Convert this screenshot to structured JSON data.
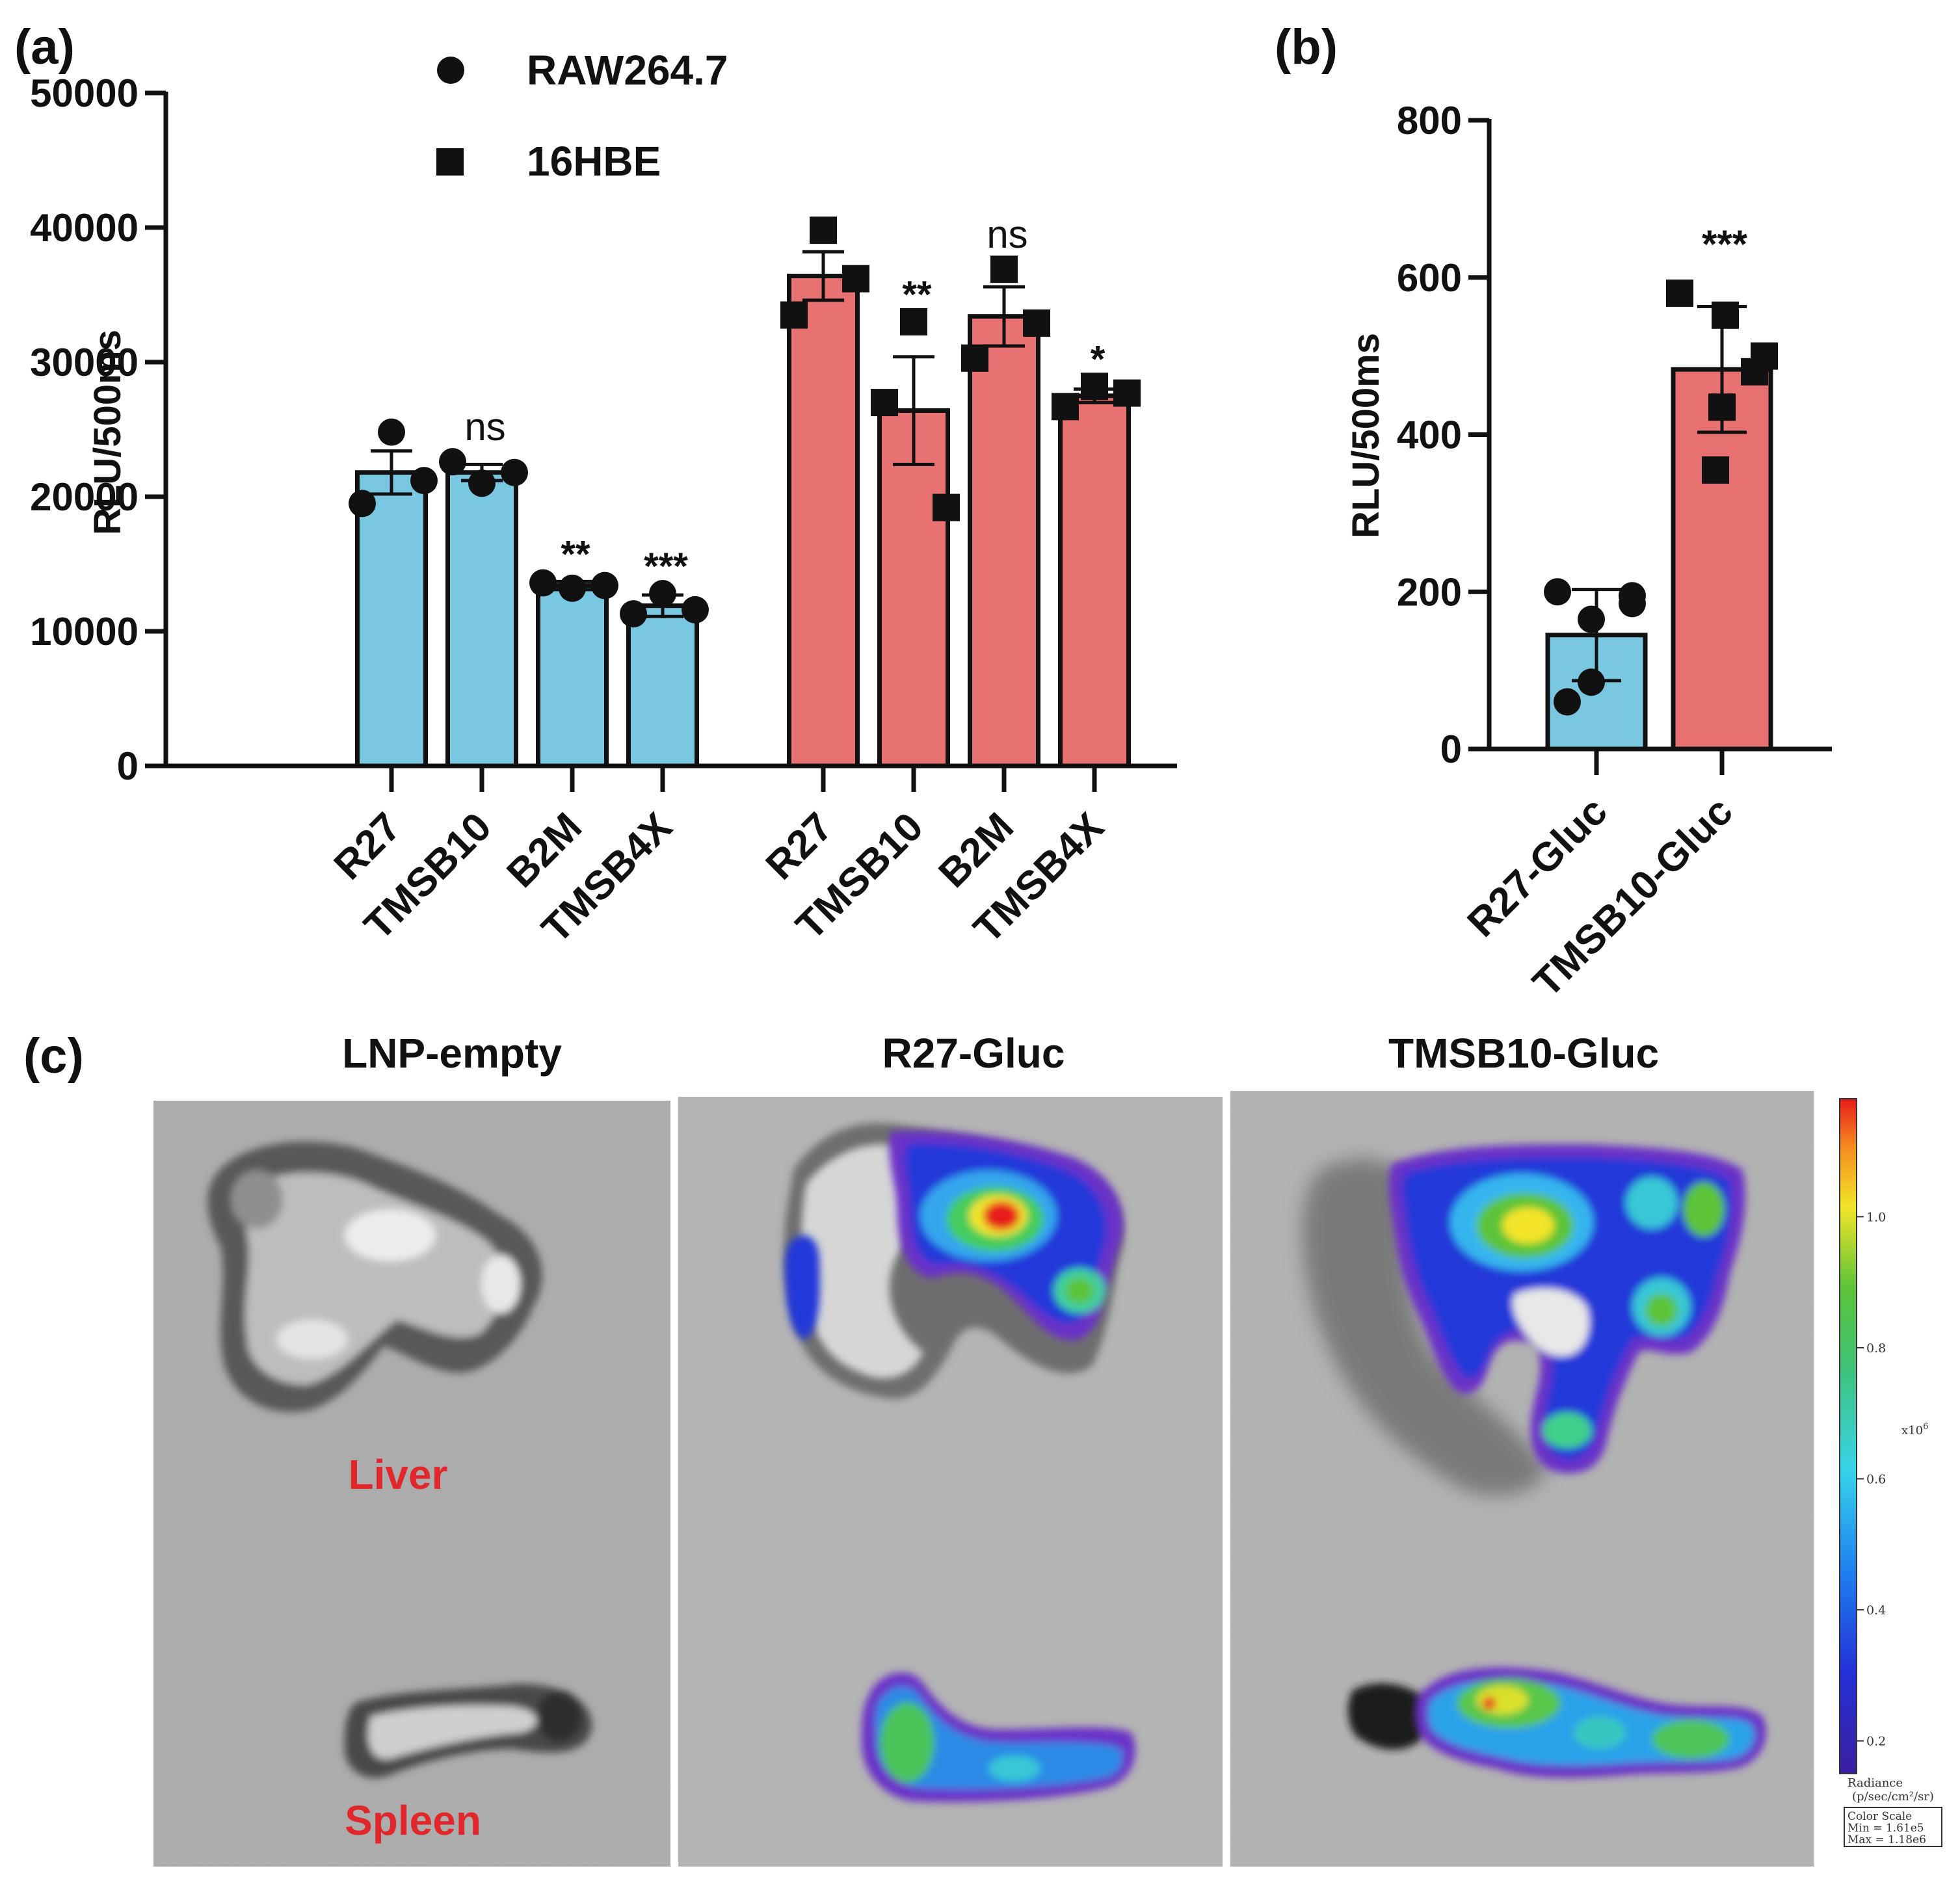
{
  "colors": {
    "raw_bar": "#7ac7e2",
    "hbe_bar": "#e87171",
    "axis": "#111111",
    "organ_label": "#e0282c"
  },
  "panel_a": {
    "label": "(a)",
    "chart_data": {
      "type": "bar",
      "ylabel": "RLU/500ms",
      "ylim": [
        0,
        50000
      ],
      "yticks": [
        0,
        10000,
        20000,
        30000,
        40000,
        50000
      ],
      "ytick_labels": [
        "0",
        "10000",
        "20000",
        "30000",
        "40000",
        "50000"
      ],
      "legend": [
        {
          "name": "RAW264.7",
          "marker": "circle"
        },
        {
          "name": "16HBE",
          "marker": "square"
        }
      ],
      "legend_position": "top",
      "groups": [
        {
          "name": "RAW264.7",
          "marker": "circle",
          "color_key": "raw_bar",
          "categories": [
            "R27",
            "TMSB10",
            "B2M",
            "TMSB4X"
          ],
          "values": [
            21800,
            21800,
            13400,
            11900
          ],
          "errors": [
            1600,
            600,
            300,
            800
          ],
          "points": [
            [
              24800,
              19500,
              21200
            ],
            [
              21000,
              22600,
              21800
            ],
            [
              13200,
              13600,
              13400
            ],
            [
              12800,
              11300,
              11600
            ]
          ],
          "significance": [
            "",
            "ns",
            "**",
            "***"
          ]
        },
        {
          "name": "16HBE",
          "marker": "square",
          "color_key": "hbe_bar",
          "categories": [
            "R27",
            "TMSB10",
            "B2M",
            "TMSB4X"
          ],
          "values": [
            36400,
            26400,
            33400,
            27500
          ],
          "errors": [
            1800,
            4000,
            2200,
            500
          ],
          "points": [
            [
              39800,
              33500,
              36200
            ],
            [
              33000,
              27000,
              19200
            ],
            [
              36900,
              30300,
              32900
            ],
            [
              28200,
              26700,
              27700
            ]
          ],
          "significance": [
            "",
            "**",
            "ns",
            "*"
          ]
        }
      ]
    }
  },
  "panel_b": {
    "label": "(b)",
    "chart_data": {
      "type": "bar",
      "ylabel": "RLU/500ms",
      "ylim": [
        0,
        800
      ],
      "yticks": [
        0,
        200,
        400,
        600,
        800
      ],
      "ytick_labels": [
        "0",
        "200",
        "400",
        "600",
        "800"
      ],
      "categories": [
        "R27-Gluc",
        "TMSB10-Gluc"
      ],
      "color_keys": [
        "raw_bar",
        "hbe_bar"
      ],
      "values": [
        145,
        483
      ],
      "errors": [
        58,
        80
      ],
      "points": [
        [
          200,
          165,
          185,
          195,
          60,
          85
        ],
        [
          580,
          552,
          480,
          500,
          435,
          355
        ]
      ],
      "markers": [
        "circle",
        "square"
      ],
      "significance": [
        "",
        "***"
      ]
    }
  },
  "panel_c": {
    "label": "(c)",
    "images": [
      {
        "title": "LNP-empty",
        "organs": [
          "Liver",
          "Spleen"
        ]
      },
      {
        "title": "R27-Gluc"
      },
      {
        "title": "TMSB10-Gluc"
      }
    ],
    "colorbar": {
      "ticks": [
        "1.0",
        "0.8",
        "0.6",
        "0.4",
        "0.2"
      ],
      "tick_values": [
        1.0,
        0.8,
        0.6,
        0.4,
        0.2
      ],
      "range": [
        0.15,
        1.18
      ],
      "multiplier": "x10",
      "multiplier_exp": "6",
      "unit_line1": "Radiance",
      "unit_line2": "(p/sec/cm²/sr)",
      "scale_lines": [
        "Color Scale",
        "Min = 1.61e5",
        "Max = 1.18e6"
      ]
    }
  }
}
